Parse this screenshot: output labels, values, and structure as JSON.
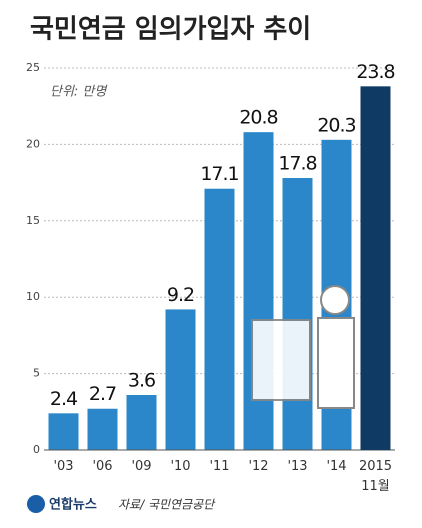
{
  "chart_data": {
    "type": "bar",
    "title": "국민연금 임의가입자 추이",
    "unit_note": "단위: 만명",
    "categories": [
      "'03",
      "'06",
      "'09",
      "'10",
      "'11",
      "'12",
      "'13",
      "'14",
      "2015\n11월"
    ],
    "values": [
      2.4,
      2.7,
      3.6,
      9.2,
      17.1,
      20.8,
      17.8,
      20.3,
      23.8
    ],
    "colors": [
      "#2b87c9",
      "#2b87c9",
      "#2b87c9",
      "#2b87c9",
      "#2b87c9",
      "#2b87c9",
      "#2b87c9",
      "#2b87c9",
      "#0f3a64"
    ],
    "ylim": [
      0,
      25
    ],
    "yticks": [
      0,
      5,
      10,
      15,
      20,
      25
    ],
    "grid": true,
    "source": "자료/ 국민연금공단",
    "logo": "연합뉴스"
  }
}
